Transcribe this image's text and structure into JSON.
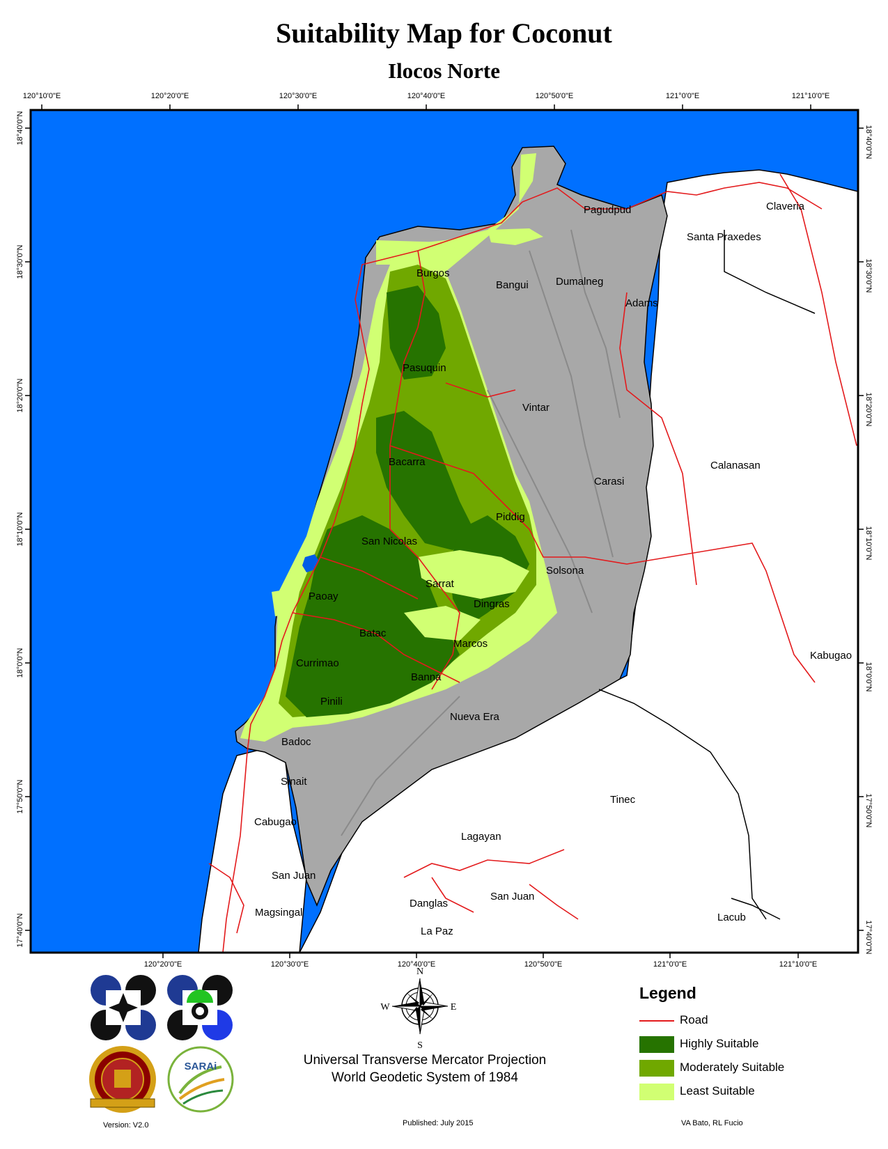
{
  "header": {
    "title": "Suitability Map for Coconut",
    "subtitle": "Ilocos Norte"
  },
  "grid": {
    "top_longitudes": [
      "120°10'0\"E",
      "120°20'0\"E",
      "120°30'0\"E",
      "120°40'0\"E",
      "120°50'0\"E",
      "121°0'0\"E",
      "121°10'0\"E"
    ],
    "bottom_longitudes": [
      "120°20'0\"E",
      "120°30'0\"E",
      "120°40'0\"E",
      "120°50'0\"E",
      "121°0'0\"E",
      "121°10'0\"E"
    ],
    "latitudes": [
      "18°40'0\"N",
      "18°30'0\"N",
      "18°20'0\"N",
      "18°10'0\"N",
      "18°0'0\"N",
      "17°50'0\"N",
      "17°40'0\"N"
    ]
  },
  "places": [
    "Pagudpud",
    "Claveria",
    "Santa Praxedes",
    "Burgos",
    "Bangui",
    "Dumalneg",
    "Adams",
    "Pasuquin",
    "Vintar",
    "Bacarra",
    "Carasi",
    "Calanasan",
    "Piddig",
    "San Nicolas",
    "Solsona",
    "Sarrat",
    "Paoay",
    "Dingras",
    "Batac",
    "Marcos",
    "Kabugao",
    "Currimao",
    "Banna",
    "Pinili",
    "Nueva Era",
    "Badoc",
    "Sinait",
    "Tinec",
    "Cabugao",
    "Lagayan",
    "San Juan",
    "San Juan",
    "Danglas",
    "La Paz",
    "Magsingal",
    "Lacub"
  ],
  "compass": {
    "north": "N",
    "south": "S",
    "east": "E",
    "west": "W"
  },
  "legend": {
    "title": "Legend",
    "items": [
      {
        "label": "Road",
        "kind": "line",
        "color": "#e31a1c"
      },
      {
        "label": "Highly Suitable",
        "kind": "fill",
        "color": "#267300"
      },
      {
        "label": "Moderately Suitable",
        "kind": "fill",
        "color": "#70a800"
      },
      {
        "label": "Least Suitable",
        "kind": "fill",
        "color": "#d1ff73"
      }
    ]
  },
  "projection": {
    "line1": "Universal Transverse Mercator Projection",
    "line2": "World Geodetic System of 1984"
  },
  "footer": {
    "version": "Version: V2.0",
    "published": "Published: July 2015",
    "authors": "VA Bato, RL Fucio"
  },
  "colors": {
    "sea": "#0070ff",
    "terrain": "#a8a8a8",
    "road": "#e31a1c",
    "lake": "#005ce6"
  },
  "logos": {
    "logo1_icon": "da-logo",
    "logo2_icon": "dost-logo",
    "logo3_icon": "university-seal",
    "logo4_text": "SARAi"
  }
}
